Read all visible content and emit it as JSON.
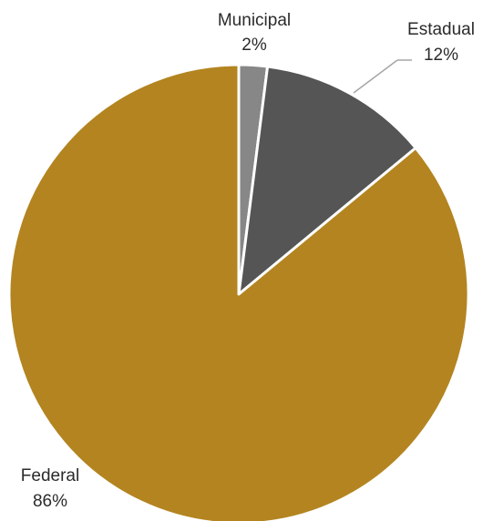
{
  "chart_data": {
    "type": "pie",
    "slices": [
      {
        "name": "Municipal",
        "value": 2,
        "value_label": "2%",
        "color": "#878787"
      },
      {
        "name": "Estadual",
        "value": 12,
        "value_label": "12%",
        "color": "#555555"
      },
      {
        "name": "Federal",
        "value": 86,
        "value_label": "86%",
        "color": "#B38420"
      }
    ],
    "legend": "none",
    "slice_border_color": "#ffffff",
    "leader_line_color": "#a6a6a6"
  }
}
